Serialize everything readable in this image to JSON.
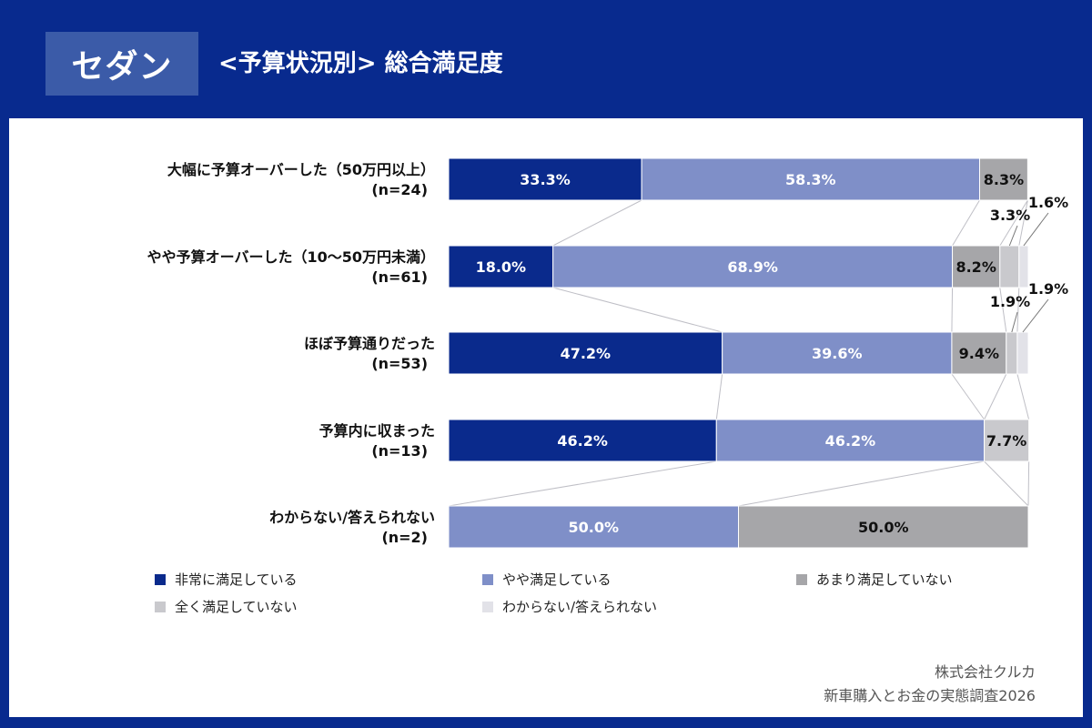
{
  "header": {
    "badge": "セダン",
    "title": "<予算状況別> 総合満足度"
  },
  "colors": {
    "background": "#082a8e",
    "very_satisfied": "#0a2a8c",
    "somewhat_satisfied": "#7f8fc8",
    "not_very_satisfied": "#a6a6a9",
    "not_at_all_satisfied": "#c9c9cd",
    "unknown": "#e2e2e8"
  },
  "chart_data": {
    "type": "bar",
    "orientation": "horizontal",
    "stacked": true,
    "categories": [
      {
        "label": "大幅に予算オーバーした（50万円以上）",
        "n": "(n=24)"
      },
      {
        "label": "やや予算オーバーした（10〜50万円未満）",
        "n": "(n=61)"
      },
      {
        "label": "ほぼ予算通りだった",
        "n": "(n=53)"
      },
      {
        "label": "予算内に収まった",
        "n": "(n=13)"
      },
      {
        "label": "わからない/答えられない",
        "n": "(n=2)"
      }
    ],
    "series": [
      {
        "name": "非常に満足している",
        "color": "#0a2a8c",
        "values": [
          33.3,
          18.0,
          47.2,
          46.2,
          0
        ],
        "labels": [
          "33.3%",
          "18.0%",
          "47.2%",
          "46.2%",
          ""
        ]
      },
      {
        "name": "やや満足している",
        "color": "#7f8fc8",
        "values": [
          58.3,
          68.9,
          39.6,
          46.2,
          50.0
        ],
        "labels": [
          "58.3%",
          "68.9%",
          "39.6%",
          "46.2%",
          "50.0%"
        ]
      },
      {
        "name": "あまり満足していない",
        "color": "#a6a6a9",
        "values": [
          8.3,
          8.2,
          9.4,
          0,
          50.0
        ],
        "labels": [
          "8.3%",
          "8.2%",
          "9.4%",
          "",
          "50.0%"
        ]
      },
      {
        "name": "全く満足していない",
        "color": "#c9c9cd",
        "values": [
          0,
          3.3,
          1.9,
          7.7,
          0
        ],
        "labels": [
          "",
          "3.3%",
          "1.9%",
          "7.7%",
          ""
        ]
      },
      {
        "name": "わからない/答えられない",
        "color": "#e2e2e8",
        "values": [
          0,
          1.6,
          1.9,
          0,
          0
        ],
        "labels": [
          "",
          "1.6%",
          "1.9%",
          "",
          ""
        ]
      }
    ],
    "xlim": [
      0,
      100
    ],
    "legend_position": "bottom",
    "grid": false
  },
  "credit": {
    "company": "株式会社クルカ",
    "survey": "新車購入とお金の実態調査2026"
  }
}
